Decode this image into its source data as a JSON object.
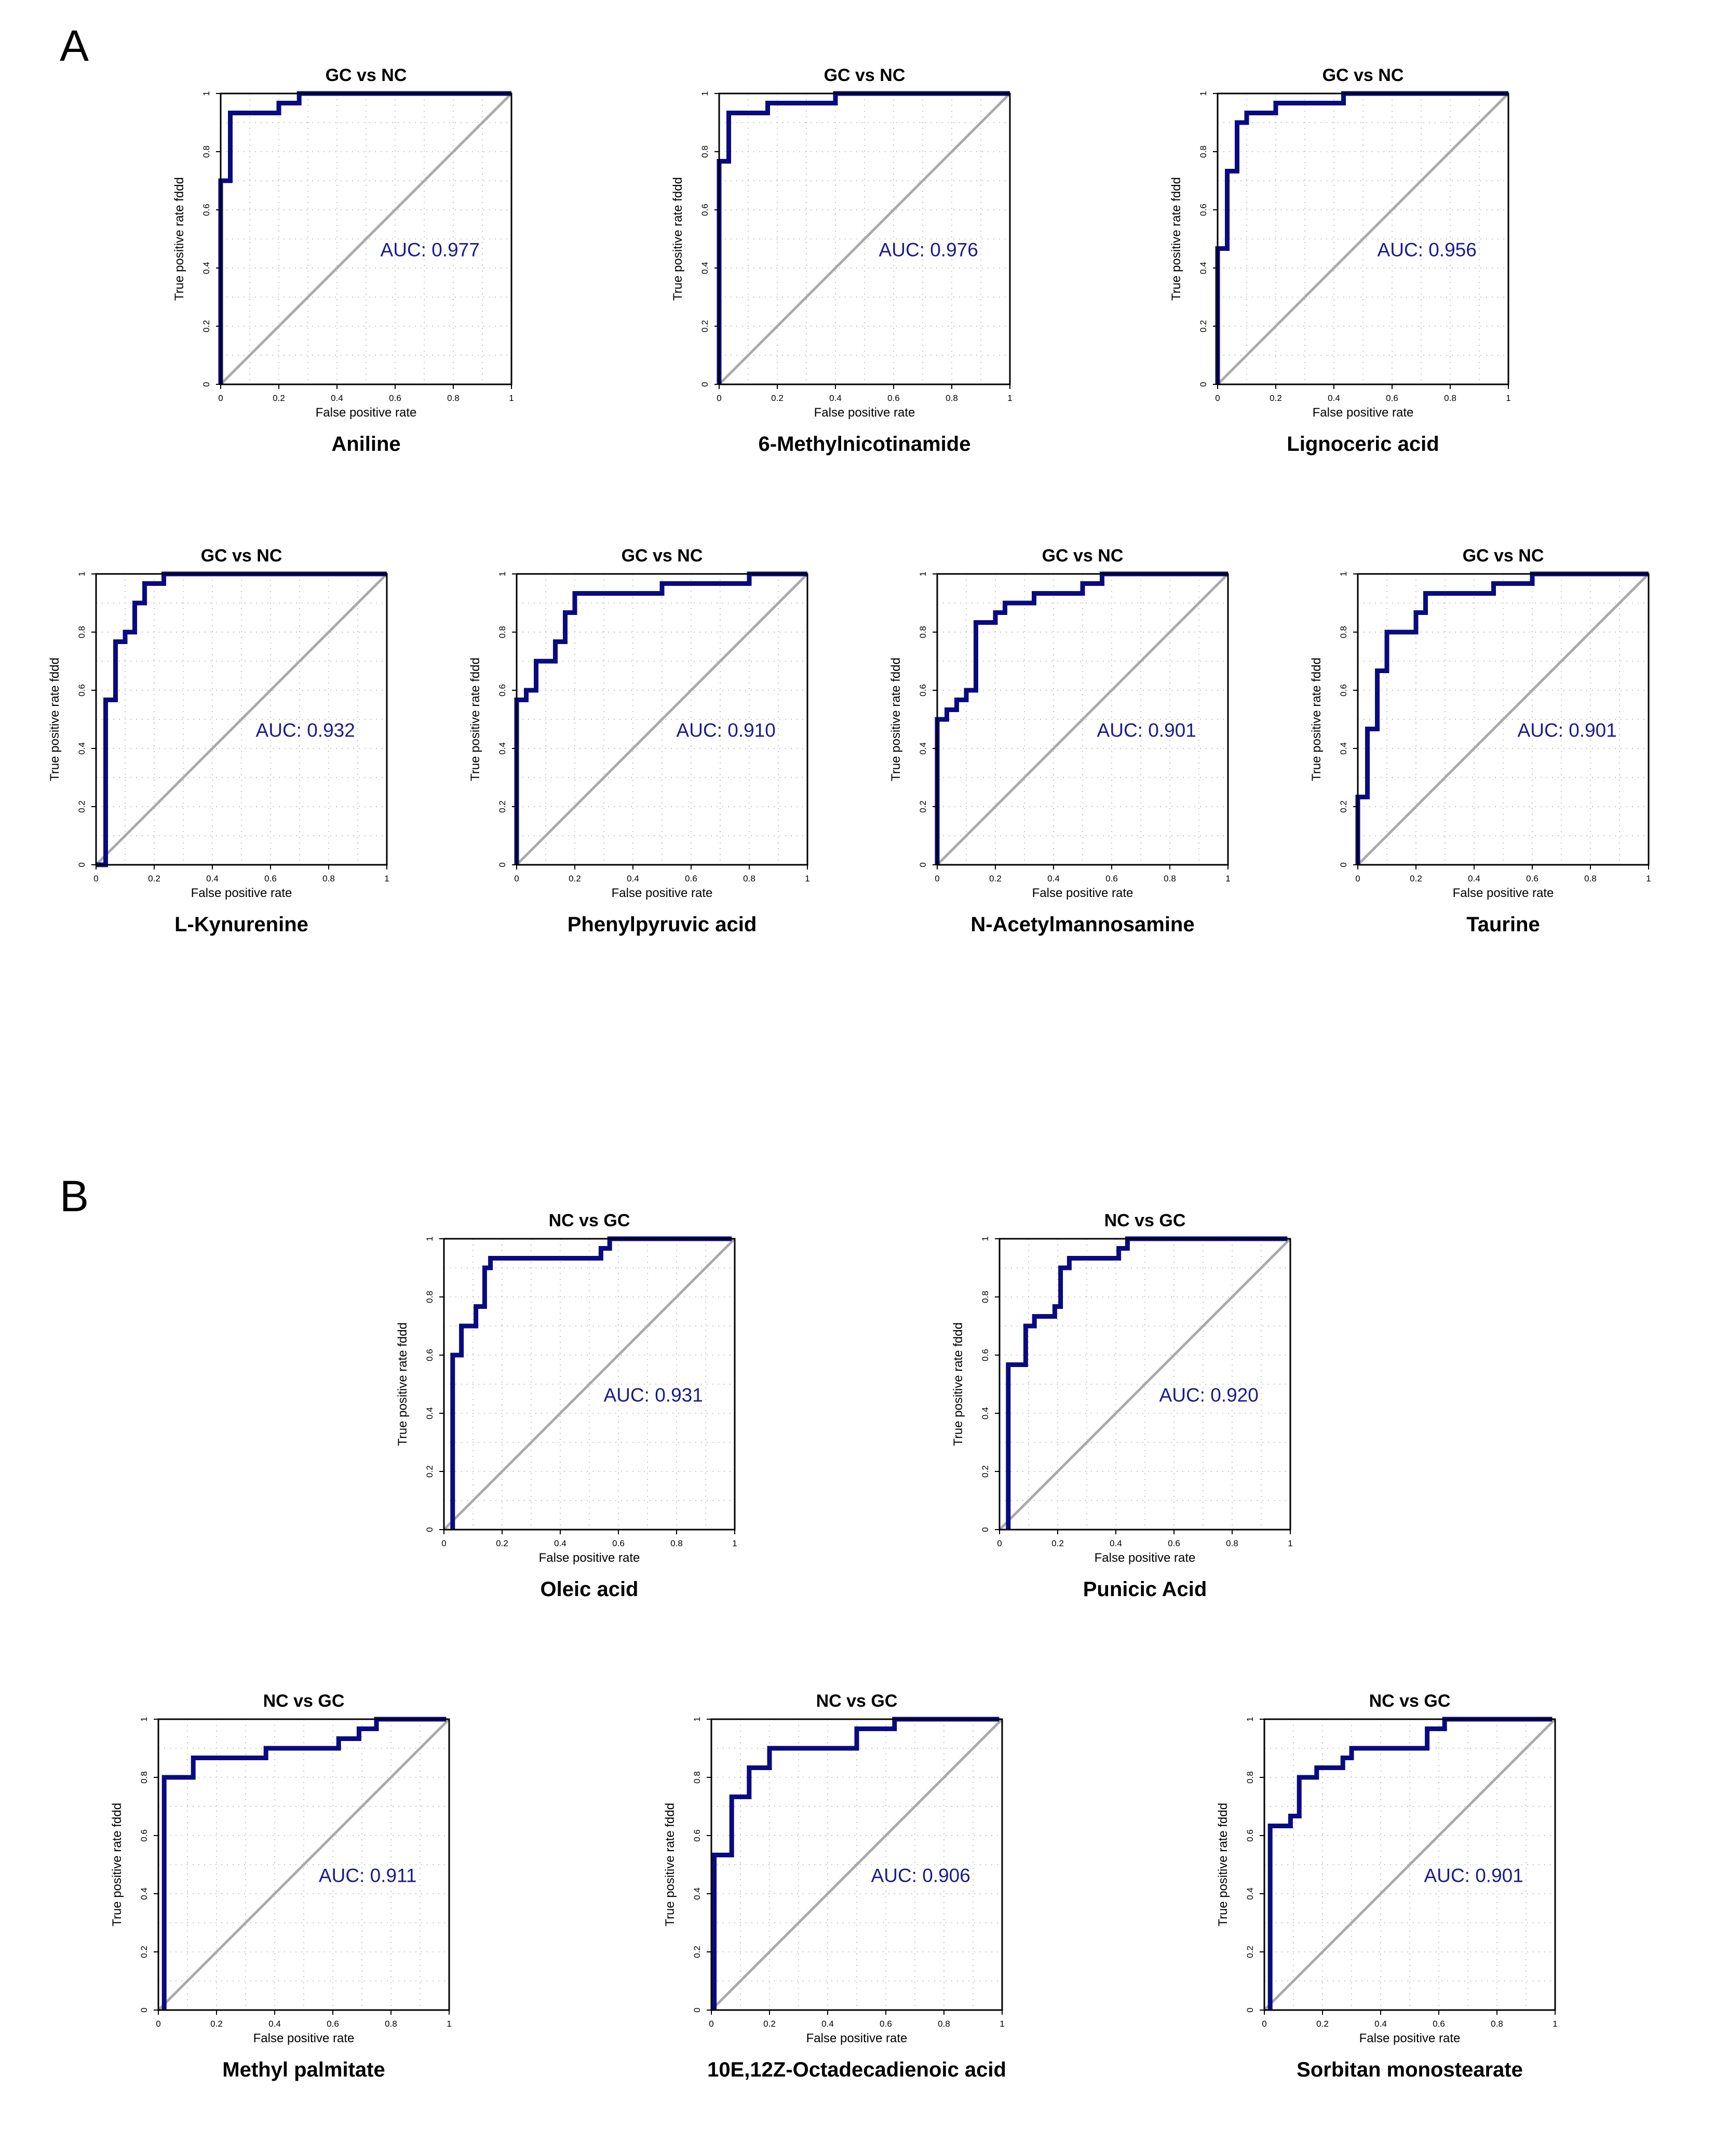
{
  "panels": [
    {
      "letter": "A"
    },
    {
      "letter": "B"
    }
  ],
  "colors": {
    "curve": "#0a0a80",
    "diagonal": "#aaaaaa",
    "grid": "#c8c8c8",
    "auc_text": "#1a1a8c"
  },
  "chart_data": [
    {
      "type": "line",
      "panel": "A",
      "title": "GC vs NC",
      "caption": "Aniline",
      "xlabel": "False positive rate",
      "ylabel": "True positive rate fddd",
      "auc_label": "AUC: 0.977",
      "xlim": [
        0,
        1
      ],
      "ylim": [
        0,
        1
      ],
      "x_ticks": [
        "0",
        "0.2",
        "0.4",
        "0.6",
        "0.8",
        "1"
      ],
      "y_ticks": [
        "0",
        "0.2",
        "0.4",
        "0.6",
        "0.8",
        "1"
      ],
      "series": [
        {
          "name": "ROC",
          "x": [
            0,
            0,
            0.033,
            0.033,
            0.2,
            0.2,
            0.27,
            0.27,
            1
          ],
          "y": [
            0,
            0.7,
            0.7,
            0.933,
            0.933,
            0.967,
            0.967,
            1,
            1
          ]
        }
      ]
    },
    {
      "type": "line",
      "panel": "A",
      "title": "GC vs NC",
      "caption": "6-Methylnicotinamide",
      "xlabel": "False positive rate",
      "ylabel": "True positive rate fddd",
      "auc_label": "AUC: 0.976",
      "xlim": [
        0,
        1
      ],
      "ylim": [
        0,
        1
      ],
      "x_ticks": [
        "0",
        "0.2",
        "0.4",
        "0.6",
        "0.8",
        "1"
      ],
      "y_ticks": [
        "0",
        "0.2",
        "0.4",
        "0.6",
        "0.8",
        "1"
      ],
      "series": [
        {
          "name": "ROC",
          "x": [
            0,
            0,
            0.033,
            0.033,
            0.167,
            0.167,
            0.4,
            0.4,
            1
          ],
          "y": [
            0,
            0.767,
            0.767,
            0.933,
            0.933,
            0.967,
            0.967,
            1,
            1
          ]
        }
      ]
    },
    {
      "type": "line",
      "panel": "A",
      "title": "GC vs NC",
      "caption": "Lignoceric acid",
      "xlabel": "False positive rate",
      "ylabel": "True positive rate fddd",
      "auc_label": "AUC: 0.956",
      "xlim": [
        0,
        1
      ],
      "ylim": [
        0,
        1
      ],
      "x_ticks": [
        "0",
        "0.2",
        "0.4",
        "0.6",
        "0.8",
        "1"
      ],
      "y_ticks": [
        "0",
        "0.2",
        "0.4",
        "0.6",
        "0.8",
        "1"
      ],
      "series": [
        {
          "name": "ROC",
          "x": [
            0,
            0,
            0.033,
            0.033,
            0.067,
            0.067,
            0.1,
            0.1,
            0.2,
            0.2,
            0.433,
            0.433,
            1
          ],
          "y": [
            0,
            0.467,
            0.467,
            0.733,
            0.733,
            0.9,
            0.9,
            0.933,
            0.933,
            0.967,
            0.967,
            1,
            1
          ]
        }
      ]
    },
    {
      "type": "line",
      "panel": "A",
      "title": "GC vs NC",
      "caption": "L-Kynurenine",
      "xlabel": "False positive rate",
      "ylabel": "True positive rate fddd",
      "auc_label": "AUC: 0.932",
      "xlim": [
        0,
        1
      ],
      "ylim": [
        0,
        1
      ],
      "x_ticks": [
        "0",
        "0.2",
        "0.4",
        "0.6",
        "0.8",
        "1"
      ],
      "y_ticks": [
        "0",
        "0.2",
        "0.4",
        "0.6",
        "0.8",
        "1"
      ],
      "series": [
        {
          "name": "ROC",
          "x": [
            0,
            0.033,
            0.033,
            0.067,
            0.067,
            0.1,
            0.1,
            0.133,
            0.133,
            0.167,
            0.167,
            0.233,
            0.233,
            1
          ],
          "y": [
            0,
            0,
            0.567,
            0.567,
            0.767,
            0.767,
            0.8,
            0.8,
            0.9,
            0.9,
            0.967,
            0.967,
            1,
            1
          ]
        }
      ]
    },
    {
      "type": "line",
      "panel": "A",
      "title": "GC vs NC",
      "caption": "Phenylpyruvic acid",
      "xlabel": "False positive rate",
      "ylabel": "True positive rate fddd",
      "auc_label": "AUC: 0.910",
      "xlim": [
        0,
        1
      ],
      "ylim": [
        0,
        1
      ],
      "x_ticks": [
        "0",
        "0.2",
        "0.4",
        "0.6",
        "0.8",
        "1"
      ],
      "y_ticks": [
        "0",
        "0.2",
        "0.4",
        "0.6",
        "0.8",
        "1"
      ],
      "series": [
        {
          "name": "ROC",
          "x": [
            0,
            0,
            0.033,
            0.033,
            0.067,
            0.067,
            0.133,
            0.133,
            0.167,
            0.167,
            0.2,
            0.2,
            0.5,
            0.5,
            0.8,
            0.8,
            1
          ],
          "y": [
            0,
            0.567,
            0.567,
            0.6,
            0.6,
            0.7,
            0.7,
            0.767,
            0.767,
            0.867,
            0.867,
            0.933,
            0.933,
            0.967,
            0.967,
            1,
            1
          ]
        }
      ]
    },
    {
      "type": "line",
      "panel": "A",
      "title": "GC vs NC",
      "caption": "N-Acetylmannosamine",
      "xlabel": "False positive rate",
      "ylabel": "True positive rate fddd",
      "auc_label": "AUC: 0.901",
      "xlim": [
        0,
        1
      ],
      "ylim": [
        0,
        1
      ],
      "x_ticks": [
        "0",
        "0.2",
        "0.4",
        "0.6",
        "0.8",
        "1"
      ],
      "y_ticks": [
        "0",
        "0.2",
        "0.4",
        "0.6",
        "0.8",
        "1"
      ],
      "series": [
        {
          "name": "ROC",
          "x": [
            0,
            0,
            0.033,
            0.033,
            0.067,
            0.067,
            0.1,
            0.1,
            0.133,
            0.133,
            0.2,
            0.2,
            0.233,
            0.233,
            0.333,
            0.333,
            0.5,
            0.5,
            0.567,
            0.567,
            1
          ],
          "y": [
            0,
            0.5,
            0.5,
            0.533,
            0.533,
            0.567,
            0.567,
            0.6,
            0.6,
            0.833,
            0.833,
            0.867,
            0.867,
            0.9,
            0.9,
            0.933,
            0.933,
            0.967,
            0.967,
            1,
            1
          ]
        }
      ]
    },
    {
      "type": "line",
      "panel": "A",
      "title": "GC vs NC",
      "caption": "Taurine",
      "xlabel": "False positive rate",
      "ylabel": "True positive rate fddd",
      "auc_label": "AUC: 0.901",
      "xlim": [
        0,
        1
      ],
      "ylim": [
        0,
        1
      ],
      "x_ticks": [
        "0",
        "0.2",
        "0.4",
        "0.6",
        "0.8",
        "1"
      ],
      "y_ticks": [
        "0",
        "0.2",
        "0.4",
        "0.6",
        "0.8",
        "1"
      ],
      "series": [
        {
          "name": "ROC",
          "x": [
            0,
            0,
            0.033,
            0.033,
            0.067,
            0.067,
            0.1,
            0.1,
            0.2,
            0.2,
            0.233,
            0.233,
            0.467,
            0.467,
            0.6,
            0.6,
            1
          ],
          "y": [
            0,
            0.233,
            0.233,
            0.467,
            0.467,
            0.667,
            0.667,
            0.8,
            0.8,
            0.867,
            0.867,
            0.933,
            0.933,
            0.967,
            0.967,
            1,
            1
          ]
        }
      ]
    },
    {
      "type": "line",
      "panel": "B",
      "title": "NC vs GC",
      "caption": "Oleic acid",
      "xlabel": "False positive rate",
      "ylabel": "True positive rate fddd",
      "auc_label": "AUC: 0.931",
      "xlim": [
        0,
        1
      ],
      "ylim": [
        0,
        1
      ],
      "x_ticks": [
        "0",
        "0.2",
        "0.4",
        "0.6",
        "0.8",
        "1"
      ],
      "y_ticks": [
        "0",
        "0.2",
        "0.4",
        "0.6",
        "0.8",
        "1"
      ],
      "series": [
        {
          "name": "ROC",
          "x": [
            0.03,
            0.03,
            0.06,
            0.06,
            0.11,
            0.11,
            0.14,
            0.14,
            0.16,
            0.16,
            0.54,
            0.54,
            0.57,
            0.57,
            0.99
          ],
          "y": [
            0,
            0.6,
            0.6,
            0.7,
            0.7,
            0.767,
            0.767,
            0.9,
            0.9,
            0.933,
            0.933,
            0.967,
            0.967,
            1,
            1
          ]
        }
      ]
    },
    {
      "type": "line",
      "panel": "B",
      "title": "NC vs GC",
      "caption": "Punicic Acid",
      "xlabel": "False positive rate",
      "ylabel": "True positive rate fddd",
      "auc_label": "AUC: 0.920",
      "xlim": [
        0,
        1
      ],
      "ylim": [
        0,
        1
      ],
      "x_ticks": [
        "0",
        "0.2",
        "0.4",
        "0.6",
        "0.8",
        "1"
      ],
      "y_ticks": [
        "0",
        "0.2",
        "0.4",
        "0.6",
        "0.8",
        "1"
      ],
      "series": [
        {
          "name": "ROC",
          "x": [
            0.03,
            0.03,
            0.09,
            0.09,
            0.12,
            0.12,
            0.19,
            0.19,
            0.21,
            0.21,
            0.24,
            0.24,
            0.41,
            0.41,
            0.44,
            0.44,
            0.99
          ],
          "y": [
            0,
            0.567,
            0.567,
            0.7,
            0.7,
            0.733,
            0.733,
            0.767,
            0.767,
            0.9,
            0.9,
            0.933,
            0.933,
            0.967,
            0.967,
            1,
            1
          ]
        }
      ]
    },
    {
      "type": "line",
      "panel": "B",
      "title": "NC vs GC",
      "caption": "Methyl palmitate",
      "xlabel": "False positive rate",
      "ylabel": "True positive rate fddd",
      "auc_label": "AUC: 0.911",
      "xlim": [
        0,
        1
      ],
      "ylim": [
        0,
        1
      ],
      "x_ticks": [
        "0",
        "0.2",
        "0.4",
        "0.6",
        "0.8",
        "1"
      ],
      "y_ticks": [
        "0",
        "0.2",
        "0.4",
        "0.6",
        "0.8",
        "1"
      ],
      "series": [
        {
          "name": "ROC",
          "x": [
            0.02,
            0.02,
            0.12,
            0.12,
            0.37,
            0.37,
            0.62,
            0.62,
            0.69,
            0.69,
            0.75,
            0.75,
            0.99
          ],
          "y": [
            0,
            0.8,
            0.8,
            0.867,
            0.867,
            0.9,
            0.9,
            0.933,
            0.933,
            0.967,
            0.967,
            1,
            1
          ]
        }
      ]
    },
    {
      "type": "line",
      "panel": "B",
      "title": "NC vs GC",
      "caption": "10E,12Z-Octadecadienoic acid",
      "xlabel": "False positive rate",
      "ylabel": "True positive rate fddd",
      "auc_label": "AUC: 0.906",
      "xlim": [
        0,
        1
      ],
      "ylim": [
        0,
        1
      ],
      "x_ticks": [
        "0",
        "0.2",
        "0.4",
        "0.6",
        "0.8",
        "1"
      ],
      "y_ticks": [
        "0",
        "0.2",
        "0.4",
        "0.6",
        "0.8",
        "1"
      ],
      "series": [
        {
          "name": "ROC",
          "x": [
            0.01,
            0.01,
            0.07,
            0.07,
            0.13,
            0.13,
            0.2,
            0.2,
            0.5,
            0.5,
            0.63,
            0.63,
            0.99
          ],
          "y": [
            0,
            0.533,
            0.533,
            0.733,
            0.733,
            0.833,
            0.833,
            0.9,
            0.9,
            0.967,
            0.967,
            1,
            1
          ]
        }
      ]
    },
    {
      "type": "line",
      "panel": "B",
      "title": "NC vs GC",
      "caption": "Sorbitan monostearate",
      "xlabel": "False positive rate",
      "ylabel": "True positive rate fddd",
      "auc_label": "AUC: 0.901",
      "xlim": [
        0,
        1
      ],
      "ylim": [
        0,
        1
      ],
      "x_ticks": [
        "0",
        "0.2",
        "0.4",
        "0.6",
        "0.8",
        "1"
      ],
      "y_ticks": [
        "0",
        "0.2",
        "0.4",
        "0.6",
        "0.8",
        "1"
      ],
      "series": [
        {
          "name": "ROC",
          "x": [
            0.02,
            0.02,
            0.09,
            0.09,
            0.12,
            0.12,
            0.18,
            0.18,
            0.27,
            0.27,
            0.3,
            0.3,
            0.56,
            0.56,
            0.62,
            0.62,
            0.99
          ],
          "y": [
            0,
            0.633,
            0.633,
            0.667,
            0.667,
            0.8,
            0.8,
            0.833,
            0.833,
            0.867,
            0.867,
            0.9,
            0.9,
            0.967,
            0.967,
            1,
            1
          ]
        }
      ]
    }
  ]
}
